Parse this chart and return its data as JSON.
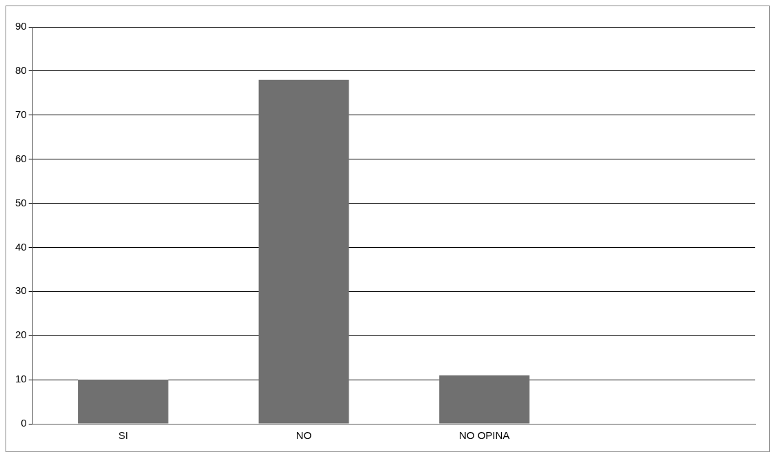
{
  "chart_data": {
    "type": "bar",
    "categories": [
      "SI",
      "NO",
      "NO OPINA",
      null
    ],
    "series": [
      {
        "color": "#707070",
        "values": [
          10,
          78,
          11,
          null
        ]
      }
    ],
    "ylim": [
      0,
      90
    ],
    "yticks": [
      0,
      10,
      20,
      30,
      40,
      50,
      60,
      70,
      80,
      90
    ],
    "grid": "y",
    "legend": false
  }
}
